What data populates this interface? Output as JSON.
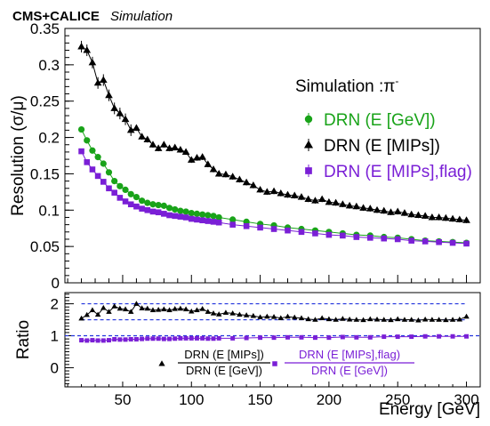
{
  "chart_data": [
    {
      "type": "scatter",
      "header_bold": "CMS+CALICE",
      "header_italic": "Simulation",
      "ylabel": "Resolution (σ/μ)",
      "xlim": [
        8,
        310
      ],
      "ylim": [
        0,
        0.35
      ],
      "yticks": [
        "0",
        "0.05",
        "0.1",
        "0.15",
        "0.2",
        "0.25",
        "0.3",
        "0.35"
      ],
      "legend_title": "Simulation :π",
      "legend_title_sup": "-",
      "legend_placement": "top-right",
      "series": [
        {
          "name": "DRN (E [GeV])",
          "color": "#19a319",
          "marker": "circle",
          "x": [
            20,
            24,
            28,
            32,
            36,
            40,
            44,
            48,
            52,
            56,
            60,
            64,
            68,
            72,
            76,
            80,
            84,
            88,
            92,
            96,
            100,
            104,
            108,
            112,
            116,
            120,
            130,
            140,
            150,
            160,
            170,
            180,
            190,
            200,
            210,
            220,
            230,
            240,
            250,
            260,
            270,
            280,
            290,
            300
          ],
          "y": [
            0.211,
            0.196,
            0.182,
            0.173,
            0.164,
            0.152,
            0.14,
            0.133,
            0.128,
            0.122,
            0.118,
            0.113,
            0.11,
            0.108,
            0.107,
            0.106,
            0.103,
            0.101,
            0.099,
            0.098,
            0.096,
            0.095,
            0.094,
            0.093,
            0.092,
            0.09,
            0.087,
            0.084,
            0.081,
            0.079,
            0.076,
            0.074,
            0.072,
            0.07,
            0.068,
            0.066,
            0.065,
            0.063,
            0.062,
            0.06,
            0.058,
            0.057,
            0.056,
            0.055
          ]
        },
        {
          "name": "DRN (E [MIPs])",
          "color": "#000000",
          "marker": "triangle",
          "x": [
            20,
            24,
            28,
            32,
            36,
            40,
            44,
            48,
            52,
            56,
            60,
            64,
            68,
            72,
            76,
            80,
            84,
            88,
            92,
            96,
            100,
            104,
            108,
            112,
            116,
            120,
            125,
            130,
            135,
            140,
            145,
            150,
            155,
            160,
            165,
            170,
            175,
            180,
            185,
            190,
            195,
            200,
            205,
            210,
            215,
            220,
            225,
            230,
            235,
            240,
            245,
            250,
            255,
            260,
            265,
            270,
            275,
            280,
            285,
            290,
            295,
            300
          ],
          "y": [
            0.325,
            0.32,
            0.303,
            0.275,
            0.279,
            0.258,
            0.24,
            0.233,
            0.225,
            0.21,
            0.213,
            0.201,
            0.197,
            0.19,
            0.185,
            0.19,
            0.185,
            0.186,
            0.183,
            0.18,
            0.169,
            0.172,
            0.173,
            0.163,
            0.156,
            0.15,
            0.149,
            0.146,
            0.142,
            0.138,
            0.134,
            0.128,
            0.125,
            0.126,
            0.123,
            0.121,
            0.12,
            0.118,
            0.115,
            0.113,
            0.115,
            0.111,
            0.11,
            0.108,
            0.106,
            0.105,
            0.103,
            0.102,
            0.1,
            0.099,
            0.097,
            0.098,
            0.096,
            0.094,
            0.093,
            0.092,
            0.09,
            0.09,
            0.089,
            0.088,
            0.087,
            0.086
          ]
        },
        {
          "name": "DRN (E [MIPs],flag)",
          "color": "#7a1fd6",
          "marker": "square",
          "x": [
            20,
            24,
            28,
            32,
            36,
            40,
            44,
            48,
            52,
            56,
            60,
            64,
            68,
            72,
            76,
            80,
            84,
            88,
            92,
            96,
            100,
            104,
            108,
            112,
            116,
            120,
            130,
            140,
            150,
            160,
            170,
            180,
            190,
            200,
            210,
            220,
            230,
            240,
            250,
            260,
            270,
            280,
            290,
            300
          ],
          "y": [
            0.181,
            0.166,
            0.156,
            0.147,
            0.139,
            0.13,
            0.124,
            0.117,
            0.112,
            0.108,
            0.105,
            0.102,
            0.1,
            0.098,
            0.097,
            0.095,
            0.093,
            0.092,
            0.091,
            0.09,
            0.088,
            0.087,
            0.086,
            0.085,
            0.084,
            0.083,
            0.08,
            0.078,
            0.076,
            0.074,
            0.072,
            0.07,
            0.068,
            0.066,
            0.065,
            0.063,
            0.062,
            0.061,
            0.06,
            0.058,
            0.057,
            0.056,
            0.055,
            0.054
          ]
        }
      ]
    },
    {
      "type": "scatter",
      "xlabel": "Energy [GeV]",
      "ylabel": "Ratio",
      "xlim": [
        8,
        310
      ],
      "ylim": [
        -0.6,
        2.35
      ],
      "xticks": [
        "50",
        "100",
        "150",
        "200",
        "250",
        "300"
      ],
      "yticks": [
        "0",
        "1",
        "2"
      ],
      "reference_lines": [
        1,
        1.5,
        2
      ],
      "legend_placement": "bottom",
      "series": [
        {
          "numerator": "DRN (E [MIPs])",
          "denominator": "DRN (E [GeV])",
          "color": "#000000",
          "marker": "triangle",
          "x": [
            20,
            24,
            28,
            32,
            36,
            40,
            44,
            48,
            52,
            56,
            60,
            64,
            68,
            72,
            76,
            80,
            84,
            88,
            92,
            96,
            100,
            104,
            108,
            112,
            116,
            120,
            125,
            130,
            135,
            140,
            145,
            150,
            155,
            160,
            165,
            170,
            175,
            180,
            185,
            190,
            195,
            200,
            205,
            210,
            215,
            220,
            225,
            230,
            235,
            240,
            245,
            250,
            255,
            260,
            265,
            270,
            275,
            280,
            285,
            290,
            295,
            300
          ],
          "y": [
            1.54,
            1.65,
            1.8,
            1.66,
            1.87,
            1.75,
            1.92,
            1.85,
            1.83,
            1.75,
            2.0,
            1.86,
            1.85,
            1.8,
            1.81,
            1.83,
            1.8,
            1.84,
            1.85,
            1.83,
            1.76,
            1.8,
            1.84,
            1.75,
            1.7,
            1.67,
            1.72,
            1.7,
            1.66,
            1.64,
            1.62,
            1.58,
            1.6,
            1.59,
            1.55,
            1.6,
            1.57,
            1.55,
            1.52,
            1.5,
            1.55,
            1.52,
            1.5,
            1.53,
            1.51,
            1.5,
            1.49,
            1.52,
            1.51,
            1.5,
            1.49,
            1.52,
            1.5,
            1.5,
            1.48,
            1.51,
            1.5,
            1.5,
            1.49,
            1.5,
            1.51,
            1.6
          ]
        },
        {
          "numerator": "DRN (E [MIPs],flag)",
          "denominator": "DRN (E [GeV])",
          "color": "#7a1fd6",
          "marker": "square",
          "x": [
            20,
            24,
            28,
            32,
            36,
            40,
            44,
            48,
            52,
            56,
            60,
            64,
            68,
            72,
            76,
            80,
            84,
            88,
            92,
            96,
            100,
            104,
            108,
            112,
            116,
            120,
            130,
            140,
            150,
            160,
            170,
            180,
            190,
            200,
            210,
            220,
            230,
            240,
            250,
            260,
            270,
            280,
            290,
            300
          ],
          "y": [
            0.86,
            0.85,
            0.86,
            0.85,
            0.85,
            0.86,
            0.89,
            0.88,
            0.88,
            0.89,
            0.89,
            0.9,
            0.91,
            0.91,
            0.91,
            0.9,
            0.9,
            0.91,
            0.92,
            0.92,
            0.92,
            0.92,
            0.92,
            0.91,
            0.91,
            0.92,
            0.92,
            0.93,
            0.94,
            0.94,
            0.95,
            0.95,
            0.94,
            0.94,
            0.96,
            0.95,
            0.95,
            0.97,
            0.97,
            0.97,
            0.98,
            0.98,
            0.98,
            0.98
          ]
        }
      ]
    }
  ]
}
